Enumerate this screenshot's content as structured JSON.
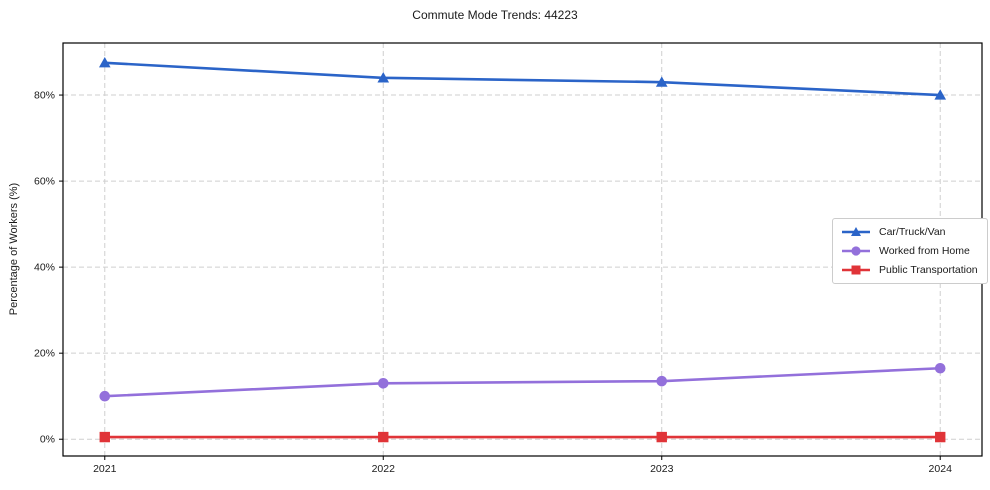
{
  "chart_data": {
    "type": "line",
    "title": "Commute Mode Trends: 44223",
    "xlabel": "",
    "ylabel": "Percentage of Workers (%)",
    "x": [
      2021,
      2022,
      2023,
      2024
    ],
    "x_tick_labels": [
      "2021",
      "2022",
      "2023",
      "2024"
    ],
    "y_ticks": [
      0,
      20,
      40,
      60,
      80
    ],
    "y_tick_labels": [
      "0%",
      "20%",
      "40%",
      "60%",
      "80%"
    ],
    "xlim": [
      2020.85,
      2024.15
    ],
    "ylim": [
      -3.9,
      92.1
    ],
    "grid": true,
    "grid_style": "dashed",
    "legend_position": "center-right",
    "series": [
      {
        "name": "Car/Truck/Van",
        "color": "#2b64c8",
        "marker": "triangle",
        "values": [
          87.5,
          84,
          83,
          80
        ]
      },
      {
        "name": "Worked from Home",
        "color": "#9370db",
        "marker": "circle",
        "values": [
          10,
          13,
          13.5,
          16.5
        ]
      },
      {
        "name": "Public Transportation",
        "color": "#e03438",
        "marker": "square",
        "values": [
          0.5,
          0.5,
          0.5,
          0.5
        ]
      }
    ]
  },
  "colors": {
    "background": "#ffffff",
    "grid": "#cfcfcf",
    "spine": "#000000",
    "text": "#1a1a1a",
    "legend_border": "#cccccc"
  }
}
